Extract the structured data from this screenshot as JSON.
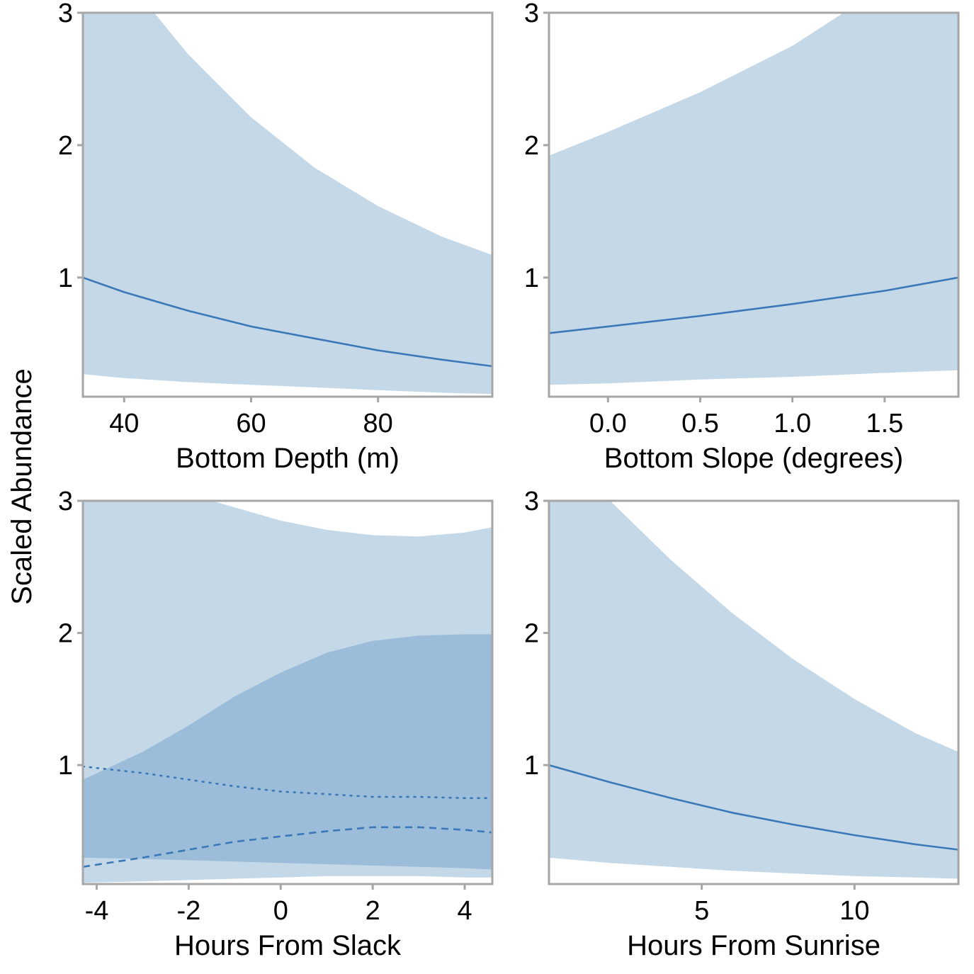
{
  "figure": {
    "ylabel": "Scaled Abundance"
  },
  "colors": {
    "band_light": "#c4d8e8",
    "band_dark": "#9bbdda",
    "line": "#3a78b8",
    "frame": "#a6a6a6",
    "text": "#000000"
  },
  "chart_data": [
    {
      "type": "line",
      "xlabel": "Bottom Depth (m)",
      "xlim": [
        33.5,
        98
      ],
      "ylim": [
        0.1,
        3
      ],
      "xticks": [
        40,
        60,
        80
      ],
      "xtick_labels": [
        "40",
        "60",
        "80"
      ],
      "yticks": [
        1,
        2,
        3
      ],
      "ytick_labels": [
        "1",
        "2",
        "3"
      ],
      "grid": false,
      "series": [
        {
          "style": "solid",
          "x": [
            33.5,
            40,
            50,
            60,
            70,
            80,
            90,
            98
          ],
          "y": [
            1.0,
            0.89,
            0.75,
            0.63,
            0.54,
            0.45,
            0.38,
            0.33
          ],
          "band_lower": [
            0.27,
            0.24,
            0.21,
            0.19,
            0.17,
            0.15,
            0.13,
            0.12
          ],
          "band_upper": [
            3.66,
            3.28,
            2.69,
            2.21,
            1.83,
            1.54,
            1.31,
            1.17
          ],
          "band_color": "light"
        }
      ]
    },
    {
      "type": "line",
      "xlabel": "Bottom Slope (degrees)",
      "xlim": [
        -0.32,
        1.9
      ],
      "ylim": [
        0.1,
        3
      ],
      "xticks": [
        0.0,
        0.5,
        1.0,
        1.5
      ],
      "xtick_labels": [
        "0.0",
        "0.5",
        "1.0",
        "1.5"
      ],
      "yticks": [
        1,
        2,
        3
      ],
      "ytick_labels": [
        "1",
        "2",
        "3"
      ],
      "grid": false,
      "series": [
        {
          "style": "solid",
          "x": [
            -0.32,
            0.0,
            0.5,
            1.0,
            1.5,
            1.9
          ],
          "y": [
            0.58,
            0.63,
            0.71,
            0.8,
            0.9,
            1.0
          ],
          "band_lower": [
            0.19,
            0.2,
            0.23,
            0.25,
            0.28,
            0.3
          ],
          "band_upper": [
            1.92,
            2.1,
            2.4,
            2.75,
            3.2,
            3.6
          ],
          "band_color": "light"
        }
      ]
    },
    {
      "type": "line",
      "xlabel": "Hours From Slack",
      "xlim": [
        -4.3,
        4.6
      ],
      "ylim": [
        0.1,
        3
      ],
      "xticks": [
        -4,
        -2,
        0,
        2,
        4
      ],
      "xtick_labels": [
        "-4",
        "-2",
        "0",
        "2",
        "4"
      ],
      "yticks": [
        1,
        2,
        3
      ],
      "ytick_labels": [
        "1",
        "2",
        "3"
      ],
      "grid": false,
      "series": [
        {
          "style": "dotted",
          "x": [
            -4.3,
            -3,
            -2,
            -1,
            0,
            1,
            2,
            3,
            4,
            4.6
          ],
          "y": [
            0.99,
            0.94,
            0.89,
            0.84,
            0.8,
            0.78,
            0.76,
            0.76,
            0.75,
            0.75
          ],
          "band_lower": [
            0.11,
            0.12,
            0.13,
            0.14,
            0.15,
            0.16,
            0.16,
            0.16,
            0.15,
            0.15
          ],
          "band_upper": [
            3.5,
            3.25,
            3.05,
            2.95,
            2.85,
            2.78,
            2.74,
            2.73,
            2.76,
            2.8
          ],
          "band_color": "light"
        },
        {
          "style": "dashed",
          "x": [
            -4.3,
            -3,
            -2,
            -1,
            0,
            1,
            2,
            3,
            4,
            4.6
          ],
          "y": [
            0.23,
            0.3,
            0.36,
            0.42,
            0.46,
            0.5,
            0.53,
            0.53,
            0.51,
            0.49
          ],
          "band_lower": [
            0.3,
            0.29,
            0.28,
            0.27,
            0.26,
            0.25,
            0.24,
            0.23,
            0.22,
            0.21
          ],
          "band_upper": [
            0.89,
            1.1,
            1.3,
            1.52,
            1.7,
            1.85,
            1.94,
            1.98,
            1.99,
            1.99
          ],
          "band_color": "dark"
        }
      ]
    },
    {
      "type": "line",
      "xlabel": "Hours From Sunrise",
      "xlim": [
        0,
        13.4
      ],
      "ylim": [
        0.1,
        3
      ],
      "xticks": [
        5,
        10
      ],
      "xtick_labels": [
        "5",
        "10"
      ],
      "yticks": [
        1,
        2,
        3
      ],
      "ytick_labels": [
        "1",
        "2",
        "3"
      ],
      "grid": false,
      "series": [
        {
          "style": "solid",
          "x": [
            0,
            2,
            4,
            6,
            8,
            10,
            12,
            13.4
          ],
          "y": [
            1.0,
            0.87,
            0.75,
            0.64,
            0.55,
            0.47,
            0.4,
            0.36
          ],
          "band_lower": [
            0.3,
            0.26,
            0.23,
            0.2,
            0.18,
            0.16,
            0.15,
            0.14
          ],
          "band_upper": [
            3.45,
            3.0,
            2.55,
            2.15,
            1.8,
            1.5,
            1.24,
            1.1
          ],
          "band_color": "light"
        }
      ]
    }
  ]
}
